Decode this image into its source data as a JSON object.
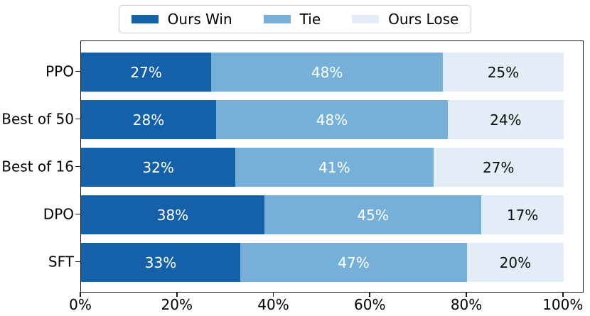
{
  "chart_data": {
    "type": "bar",
    "orientation": "horizontal",
    "stacked": true,
    "title": "",
    "xlabel": "",
    "ylabel": "",
    "categories": [
      "PPO",
      "Best of 50",
      "Best of 16",
      "DPO",
      "SFT"
    ],
    "series": [
      {
        "name": "Ours Win",
        "color": "#1561a9",
        "label_color": "#ffffff",
        "values": [
          27,
          28,
          32,
          38,
          33
        ]
      },
      {
        "name": "Tie",
        "color": "#76b0d8",
        "label_color": "#ffffff",
        "values": [
          48,
          48,
          41,
          45,
          47
        ]
      },
      {
        "name": "Ours Lose",
        "color": "#e3edf8",
        "label_color": "#0d0d0d",
        "values": [
          25,
          24,
          27,
          17,
          20
        ]
      }
    ],
    "value_suffix": "%",
    "x_tick_labels": [
      "0%",
      "20%",
      "40%",
      "60%",
      "80%",
      "100%"
    ],
    "x_tick_values": [
      0,
      20,
      40,
      60,
      80,
      100
    ],
    "xlim": [
      0,
      104.3
    ],
    "legend_position": "top-center",
    "grid": false,
    "axis_color": "#1a1a1a",
    "legend_border_color": "#cccccc"
  }
}
